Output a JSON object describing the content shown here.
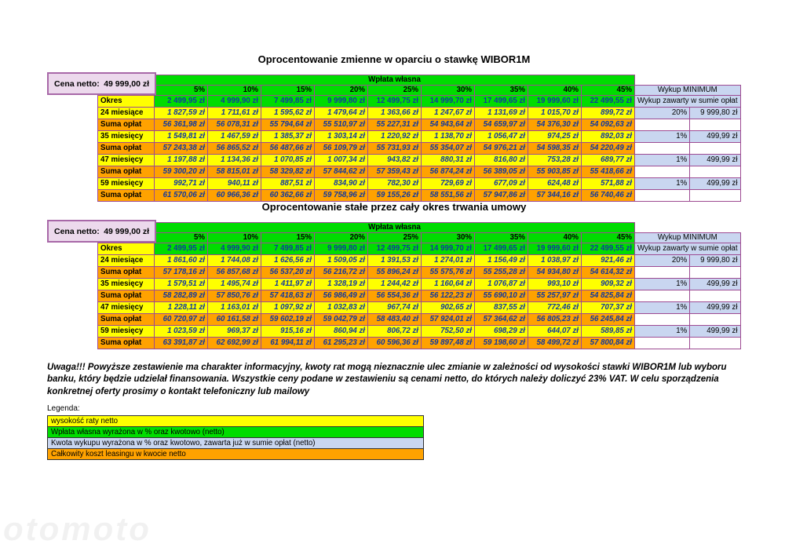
{
  "watermark": "otomoto",
  "price_box": {
    "label": "Cena netto:",
    "value": "49 999,00 zł"
  },
  "shared_headers": {
    "wplata": "Wpłata własna",
    "wykup_min": "Wykup MINIMUM",
    "wykup_sub": "Wykup zawarty w sumie opłat",
    "okres": "Okres"
  },
  "percent_cols": [
    "5%",
    "10%",
    "15%",
    "20%",
    "25%",
    "30%",
    "35%",
    "40%",
    "45%"
  ],
  "okres_values": [
    "2 499,95 zł",
    "4 999,90 zł",
    "7 499,85 zł",
    "9 999,80 zł",
    "12 499,75 zł",
    "14 999,70 zł",
    "17 499,65 zł",
    "19 999,60 zł",
    "22 499,55 zł"
  ],
  "tables": [
    {
      "title": "Oprocentowanie zmienne w oparciu o stawkę WIBOR1M",
      "rows": [
        {
          "label": "24 miesiące",
          "type": "rate",
          "values": [
            "1 827,59 zł",
            "1 711,61 zł",
            "1 595,62 zł",
            "1 479,64 zł",
            "1 363,66 zł",
            "1 247,67 zł",
            "1 131,69 zł",
            "1 015,70 zł",
            "899,72 zł"
          ],
          "wykup_pct": "20%",
          "wykup_amount": "9 999,80 zł"
        },
        {
          "label": "Suma opłat",
          "type": "sum",
          "values": [
            "56 361,98 zł",
            "56 078,31 zł",
            "55 794,64 zł",
            "55 510,97 zł",
            "55 227,31 zł",
            "54 943,64 zł",
            "54 659,97 zł",
            "54 376,30 zł",
            "54 092,63 zł"
          ],
          "wykup_pct": "",
          "wykup_amount": ""
        },
        {
          "label": "35 miesięcy",
          "type": "rate",
          "values": [
            "1 549,81 zł",
            "1 467,59 zł",
            "1 385,37 zł",
            "1 303,14 zł",
            "1 220,92 zł",
            "1 138,70 zł",
            "1 056,47 zł",
            "974,25 zł",
            "892,03 zł"
          ],
          "wykup_pct": "1%",
          "wykup_amount": "499,99 zł"
        },
        {
          "label": "Suma opłat",
          "type": "sum",
          "values": [
            "57 243,38 zł",
            "56 865,52 zł",
            "56 487,66 zł",
            "56 109,79 zł",
            "55 731,93 zł",
            "55 354,07 zł",
            "54 976,21 zł",
            "54 598,35 zł",
            "54 220,49 zł"
          ],
          "wykup_pct": "",
          "wykup_amount": ""
        },
        {
          "label": "47 miesięcy",
          "type": "rate",
          "values": [
            "1 197,88 zł",
            "1 134,36 zł",
            "1 070,85 zł",
            "1 007,34 zł",
            "943,82 zł",
            "880,31 zł",
            "816,80 zł",
            "753,28 zł",
            "689,77 zł"
          ],
          "wykup_pct": "1%",
          "wykup_amount": "499,99 zł"
        },
        {
          "label": "Suma opłat",
          "type": "sum",
          "values": [
            "59 300,20 zł",
            "58 815,01 zł",
            "58 329,82 zł",
            "57 844,62 zł",
            "57 359,43 zł",
            "56 874,24 zł",
            "56 389,05 zł",
            "55 903,85 zł",
            "55 418,66 zł"
          ],
          "wykup_pct": "",
          "wykup_amount": ""
        },
        {
          "label": "59 miesięcy",
          "type": "rate",
          "values": [
            "992,71 zł",
            "940,11 zł",
            "887,51 zł",
            "834,90 zł",
            "782,30 zł",
            "729,69 zł",
            "677,09 zł",
            "624,48 zł",
            "571,88 zł"
          ],
          "wykup_pct": "1%",
          "wykup_amount": "499,99 zł"
        },
        {
          "label": "Suma opłat",
          "type": "sum",
          "values": [
            "61 570,06 zł",
            "60 966,36 zł",
            "60 362,66 zł",
            "59 758,96 zł",
            "59 155,26 zł",
            "58 551,56 zł",
            "57 947,86 zł",
            "57 344,16 zł",
            "56 740,46 zł"
          ],
          "wykup_pct": "",
          "wykup_amount": ""
        }
      ]
    },
    {
      "title": "Oprocentowanie stałe przez cały okres trwania umowy",
      "rows": [
        {
          "label": "24 miesiące",
          "type": "rate",
          "values": [
            "1 861,60 zł",
            "1 744,08 zł",
            "1 626,56 zł",
            "1 509,05 zł",
            "1 391,53 zł",
            "1 274,01 zł",
            "1 156,49 zł",
            "1 038,97 zł",
            "921,46 zł"
          ],
          "wykup_pct": "20%",
          "wykup_amount": "9 999,80 zł"
        },
        {
          "label": "Suma opłat",
          "type": "sum",
          "values": [
            "57 178,16 zł",
            "56 857,68 zł",
            "56 537,20 zł",
            "56 216,72 zł",
            "55 896,24 zł",
            "55 575,76 zł",
            "55 255,28 zł",
            "54 934,80 zł",
            "54 614,32 zł"
          ],
          "wykup_pct": "",
          "wykup_amount": ""
        },
        {
          "label": "35 miesięcy",
          "type": "rate",
          "values": [
            "1 579,51 zł",
            "1 495,74 zł",
            "1 411,97 zł",
            "1 328,19 zł",
            "1 244,42 zł",
            "1 160,64 zł",
            "1 076,87 zł",
            "993,10 zł",
            "909,32 zł"
          ],
          "wykup_pct": "1%",
          "wykup_amount": "499,99 zł"
        },
        {
          "label": "Suma opłat",
          "type": "sum",
          "values": [
            "58 282,89 zł",
            "57 850,76 zł",
            "57 418,63 zł",
            "56 986,49 zł",
            "56 554,36 zł",
            "56 122,23 zł",
            "55 690,10 zł",
            "55 257,97 zł",
            "54 825,84 zł"
          ],
          "wykup_pct": "",
          "wykup_amount": ""
        },
        {
          "label": "47 miesięcy",
          "type": "rate",
          "values": [
            "1 228,11 zł",
            "1 163,01 zł",
            "1 097,92 zł",
            "1 032,83 zł",
            "967,74 zł",
            "902,65 zł",
            "837,55 zł",
            "772,46 zł",
            "707,37 zł"
          ],
          "wykup_pct": "1%",
          "wykup_amount": "499,99 zł"
        },
        {
          "label": "Suma opłat",
          "type": "sum",
          "values": [
            "60 720,97 zł",
            "60 161,58 zł",
            "59 602,19 zł",
            "59 042,79 zł",
            "58 483,40 zł",
            "57 924,01 zł",
            "57 364,62 zł",
            "56 805,23 zł",
            "56 245,84 zł"
          ],
          "wykup_pct": "",
          "wykup_amount": ""
        },
        {
          "label": "59 miesięcy",
          "type": "rate",
          "values": [
            "1 023,59 zł",
            "969,37 zł",
            "915,16 zł",
            "860,94 zł",
            "806,72 zł",
            "752,50 zł",
            "698,29 zł",
            "644,07 zł",
            "589,85 zł"
          ],
          "wykup_pct": "1%",
          "wykup_amount": "499,99 zł"
        },
        {
          "label": "Suma opłat",
          "type": "sum",
          "values": [
            "63 391,87 zł",
            "62 692,99 zł",
            "61 994,11 zł",
            "61 295,23 zł",
            "60 596,36 zł",
            "59 897,48 zł",
            "59 198,60 zł",
            "58 499,72 zł",
            "57 800,84 zł"
          ],
          "wykup_pct": "",
          "wykup_amount": ""
        }
      ]
    }
  ],
  "note": "Uwaga!!! Powyższe zestawienie ma charakter informacyjny, kwoty rat mogą nieznacznie ulec zmianie w zależności od wysokości stawki WIBOR1M lub wyboru banku, który będzie udzielał finansowania. Wszystkie ceny podane w zestawieniu są cenami netto, do których należy doliczyć 23% VAT. W celu sporządzenia konkretnej oferty prosimy o kontakt telefoniczny lub mailowy",
  "legend": {
    "title": "Legenda:",
    "items": [
      {
        "label": "wysokość raty netto",
        "color": "#ffff00"
      },
      {
        "label": "Wpłata własna wyrażona w % oraz kwotowo (netto)",
        "color": "#00dc00"
      },
      {
        "label": "Kwota wykupu wyrażona w % oraz kwotowo, zawarta już w sumie opłat (netto)",
        "color": "#c9d6f0"
      },
      {
        "label": "Całkowity koszt leasingu w kwocie netto",
        "color": "#ffa200"
      }
    ]
  },
  "colors": {
    "rate_row": "#ffff00",
    "sum_row": "#ffa200",
    "wplata_header": "#00dc00",
    "wykup_cells": "#c9d6f0",
    "price_box_bg": "#ecd9ec",
    "grid_border": "#9d4a92",
    "value_text": "#10389f"
  }
}
